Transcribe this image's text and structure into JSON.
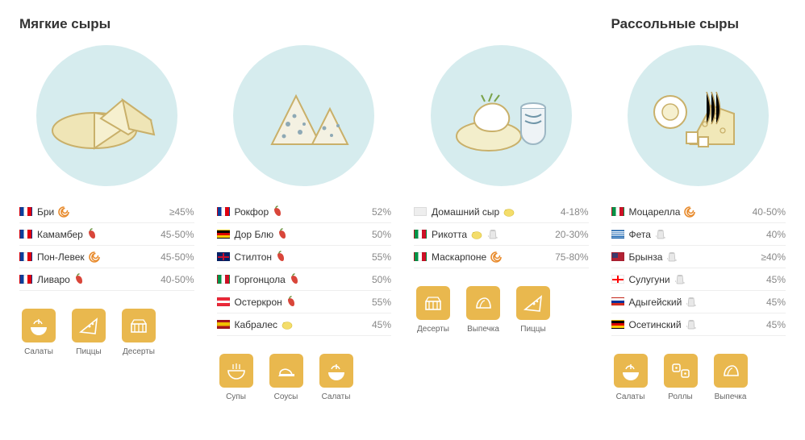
{
  "sections": {
    "left_title": "Мягкие сыры",
    "right_title": "Рассольные сыры"
  },
  "taste_icons": {
    "spiral": "spiral",
    "chili": "chili",
    "lemon": "lemon",
    "salt": "salt"
  },
  "colors": {
    "circle_bg": "#d6ecee",
    "use_icon_bg": "#e9b84e",
    "text": "#333333",
    "muted": "#888888",
    "divider": "#eeeeee"
  },
  "columns": [
    {
      "id": "soft1",
      "illustration": "brie",
      "rows": [
        {
          "flag": "fr",
          "name": "Бри",
          "taste": [
            "spiral"
          ],
          "pct": "≥45%"
        },
        {
          "flag": "fr",
          "name": "Камамбер",
          "taste": [
            "chili"
          ],
          "pct": "45-50%"
        },
        {
          "flag": "fr",
          "name": "Пон-Левек",
          "taste": [
            "spiral"
          ],
          "pct": "45-50%"
        },
        {
          "flag": "fr",
          "name": "Ливаро",
          "taste": [
            "chili"
          ],
          "pct": "40-50%"
        }
      ],
      "uses": [
        {
          "icon": "salad",
          "label": "Салаты"
        },
        {
          "icon": "pizza",
          "label": "Пиццы"
        },
        {
          "icon": "dessert",
          "label": "Десерты"
        }
      ]
    },
    {
      "id": "soft2",
      "illustration": "blue",
      "rows": [
        {
          "flag": "fr",
          "name": "Рокфор",
          "taste": [
            "chili"
          ],
          "pct": "52%"
        },
        {
          "flag": "de",
          "name": "Дор Блю",
          "taste": [
            "chili"
          ],
          "pct": "50%"
        },
        {
          "flag": "gb",
          "name": "Стилтон",
          "taste": [
            "chili"
          ],
          "pct": "55%"
        },
        {
          "flag": "it",
          "name": "Горгонцола",
          "taste": [
            "chili"
          ],
          "pct": "50%"
        },
        {
          "flag": "at",
          "name": "Остеркрон",
          "taste": [
            "chili"
          ],
          "pct": "55%"
        },
        {
          "flag": "es",
          "name": "Кабралес",
          "taste": [
            "lemon"
          ],
          "pct": "45%"
        }
      ],
      "uses": [
        {
          "icon": "soup",
          "label": "Супы"
        },
        {
          "icon": "sauce",
          "label": "Соусы"
        },
        {
          "icon": "salad",
          "label": "Салаты"
        }
      ]
    },
    {
      "id": "brine1",
      "illustration": "ricotta",
      "rows": [
        {
          "flag": "none",
          "name": "Домашний сыр",
          "taste": [
            "lemon"
          ],
          "pct": "4-18%"
        },
        {
          "flag": "it",
          "name": "Рикотта",
          "taste": [
            "lemon",
            "salt"
          ],
          "pct": "20-30%"
        },
        {
          "flag": "it",
          "name": "Маскарпоне",
          "taste": [
            "spiral"
          ],
          "pct": "75-80%"
        }
      ],
      "uses": [
        {
          "icon": "dessert",
          "label": "Десерты"
        },
        {
          "icon": "bake",
          "label": "Выпечка"
        },
        {
          "icon": "pizza",
          "label": "Пиццы"
        }
      ]
    },
    {
      "id": "brine2",
      "illustration": "feta",
      "rows": [
        {
          "flag": "it",
          "name": "Моцарелла",
          "taste": [
            "spiral"
          ],
          "pct": "40-50%"
        },
        {
          "flag": "gr",
          "name": "Фета",
          "taste": [
            "salt"
          ],
          "pct": "40%"
        },
        {
          "flag": "am",
          "name": "Брынза",
          "taste": [
            "salt"
          ],
          "pct": "≥40%"
        },
        {
          "flag": "ge",
          "name": "Сулугуни",
          "taste": [
            "salt"
          ],
          "pct": "45%"
        },
        {
          "flag": "ru",
          "name": "Адыгейский",
          "taste": [
            "salt"
          ],
          "pct": "45%"
        },
        {
          "flag": "de",
          "name": "Осетинский",
          "taste": [
            "salt"
          ],
          "pct": "45%"
        }
      ],
      "uses": [
        {
          "icon": "salad",
          "label": "Салаты"
        },
        {
          "icon": "rolls",
          "label": "Роллы"
        },
        {
          "icon": "bake",
          "label": "Выпечка"
        }
      ]
    }
  ]
}
